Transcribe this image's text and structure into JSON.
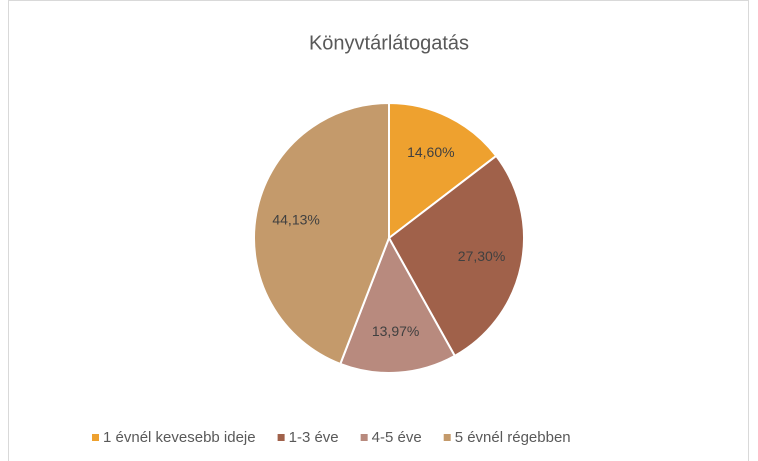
{
  "chart_data": {
    "type": "pie",
    "title": "Könyvtárlátogatás",
    "categories": [
      "1 évnél kevesebb ideje",
      "1-3 éve",
      "4-5 éve",
      "5 évnél régebben"
    ],
    "values": [
      14.6,
      27.3,
      13.97,
      44.13
    ],
    "value_labels": [
      "14,60%",
      "27,30%",
      "13,97%",
      "44,13%"
    ],
    "colors": [
      "#eea12f",
      "#a0614a",
      "#b88a7e",
      "#c49a6b"
    ],
    "legend": "bottom"
  }
}
